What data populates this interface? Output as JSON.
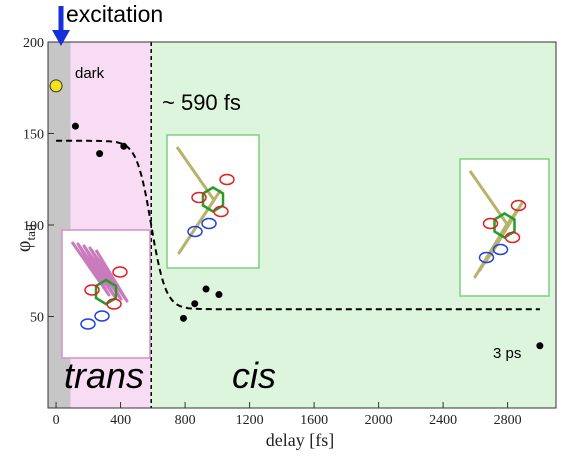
{
  "chart_data": {
    "type": "scatter",
    "xlabel": "delay [fs]",
    "ylabel_main": "φ",
    "ylabel_sub": "tail",
    "xlim": [
      -50,
      3100
    ],
    "ylim": [
      0,
      200
    ],
    "x_ticks": [
      0,
      400,
      800,
      1200,
      1600,
      2000,
      2400,
      2800
    ],
    "y_ticks": [
      50,
      100,
      150,
      200
    ],
    "grid": false,
    "colors": {
      "gray_region": "#c6c6c6",
      "trans_region": "#f7dcf3",
      "cis_region": "#dcf5dc",
      "points": "#000000",
      "dark_point": "#f5e21a",
      "arrow": "#1530d8",
      "thumb_pink_border": "#d88fc7",
      "thumb_green_border": "#7fcf7f"
    },
    "regions": [
      {
        "name": "gray",
        "x": [
          -50,
          90
        ]
      },
      {
        "name": "trans",
        "x": [
          90,
          590
        ]
      },
      {
        "name": "cis",
        "x": [
          590,
          3100
        ]
      }
    ],
    "series": [
      {
        "points": [
          {
            "x": 120,
            "y": 154
          },
          {
            "x": 270,
            "y": 139
          },
          {
            "x": 420,
            "y": 143
          },
          {
            "x": 790,
            "y": 49
          },
          {
            "x": 860,
            "y": 57
          },
          {
            "x": 930,
            "y": 65
          },
          {
            "x": 1010,
            "y": 62
          },
          {
            "x": 3000,
            "y": 34
          }
        ]
      }
    ],
    "dark_point": {
      "x": 0,
      "y": 176
    },
    "fit_curve": {
      "style": "dashed",
      "from": 146,
      "to": 54,
      "midpoint": 590,
      "width": 45
    },
    "transition_line_x": 590,
    "annotations": {
      "excitation": "excitation",
      "dark": "dark",
      "transition": "~ 590 fs",
      "trans": "trans",
      "cis": "cis",
      "late": "3 ps"
    },
    "thumbnails": [
      {
        "name": "trans-structure",
        "border": "pink"
      },
      {
        "name": "cis-early-structure",
        "border": "green"
      },
      {
        "name": "cis-late-structure",
        "border": "green"
      }
    ]
  }
}
